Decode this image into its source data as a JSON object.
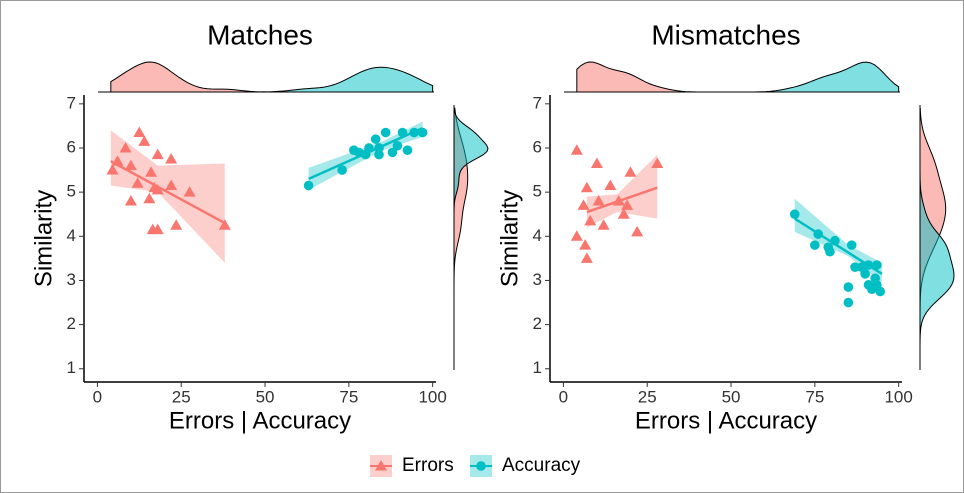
{
  "chart_data": [
    {
      "type": "scatter",
      "title": "Matches",
      "x_label": "Errors | Accuracy",
      "y_label": "Similarity",
      "xlim": [
        -4,
        101
      ],
      "ylim": [
        0.7,
        7.2
      ],
      "xticks": [
        0,
        25,
        50,
        75,
        100
      ],
      "yticks": [
        1,
        2,
        3,
        4,
        5,
        6,
        7
      ],
      "grid": false,
      "series": [
        {
          "name": "Errors",
          "color": "#f8766d",
          "marker": "triangle",
          "x": [
            4.5,
            6,
            8.4,
            10,
            12.5,
            14,
            12,
            10,
            16,
            18,
            17,
            18,
            22,
            22,
            15.5,
            16.5,
            18,
            23.5,
            27.5,
            38
          ],
          "values": [
            5.5,
            5.7,
            6.0,
            5.6,
            6.35,
            6.15,
            5.2,
            4.8,
            5.45,
            5.85,
            5.1,
            5.05,
            5.75,
            5.15,
            4.85,
            4.15,
            4.15,
            4.25,
            5.0,
            4.25
          ],
          "fit": {
            "x": [
              4,
              38
            ],
            "values": [
              5.7,
              4.3
            ]
          },
          "band": {
            "x": [
              4,
              18,
              38
            ],
            "lower": [
              5.15,
              5.0,
              3.4
            ],
            "upper": [
              6.4,
              5.6,
              5.65
            ]
          }
        },
        {
          "name": "Accuracy",
          "color": "#00bfc4",
          "marker": "circle",
          "x": [
            63,
            73,
            76.5,
            78,
            80,
            81,
            83,
            84,
            84,
            86,
            88,
            89.5,
            91,
            92.5,
            94.5,
            97
          ],
          "values": [
            5.15,
            5.5,
            5.95,
            5.9,
            5.85,
            6.0,
            6.2,
            5.85,
            6.0,
            6.35,
            5.9,
            6.05,
            6.35,
            5.95,
            6.35,
            6.35
          ],
          "fit": {
            "x": [
              63,
              97
            ],
            "values": [
              5.3,
              6.45
            ]
          },
          "band": {
            "x": [
              63,
              85,
              97
            ],
            "lower": [
              5.05,
              5.95,
              6.25
            ],
            "upper": [
              5.55,
              6.15,
              6.6
            ]
          }
        }
      ]
    },
    {
      "type": "scatter",
      "title": "Mismatches",
      "x_label": "Errors | Accuracy",
      "y_label": "Similarity",
      "xlim": [
        -4,
        101
      ],
      "ylim": [
        0.7,
        7.2
      ],
      "xticks": [
        0,
        25,
        50,
        75,
        100
      ],
      "yticks": [
        1,
        2,
        3,
        4,
        5,
        6,
        7
      ],
      "grid": false,
      "series": [
        {
          "name": "Errors",
          "color": "#f8766d",
          "marker": "triangle",
          "x": [
            4,
            10,
            28,
            7,
            14,
            20,
            6,
            10.5,
            16.5,
            19,
            4,
            6.5,
            7,
            12,
            18,
            22,
            8
          ],
          "values": [
            5.95,
            5.65,
            5.65,
            5.1,
            5.15,
            5.45,
            4.7,
            4.8,
            4.8,
            4.7,
            4.0,
            3.8,
            3.5,
            4.25,
            4.5,
            4.1,
            4.35
          ],
          "fit": {
            "x": [
              7,
              28
            ],
            "values": [
              4.55,
              5.1
            ]
          },
          "band": {
            "x": [
              7,
              16,
              28
            ],
            "lower": [
              4.2,
              4.55,
              4.4
            ],
            "upper": [
              4.9,
              4.95,
              5.85
            ]
          }
        },
        {
          "name": "Accuracy",
          "color": "#00bfc4",
          "marker": "circle",
          "x": [
            69,
            76,
            75,
            79,
            79.5,
            81,
            86,
            87,
            85,
            85,
            89,
            90,
            91,
            92,
            93,
            93.5,
            94.5,
            91,
            93.5
          ],
          "values": [
            4.5,
            4.05,
            3.8,
            3.75,
            3.65,
            3.9,
            3.8,
            3.3,
            2.85,
            2.5,
            3.3,
            3.15,
            3.35,
            2.8,
            3.05,
            3.35,
            2.75,
            2.9,
            2.9
          ],
          "fit": {
            "x": [
              69,
              95
            ],
            "values": [
              4.4,
              3.15
            ]
          },
          "band": {
            "x": [
              69,
              85,
              95
            ],
            "lower": [
              4.1,
              3.55,
              2.95
            ],
            "upper": [
              4.85,
              3.8,
              3.4
            ]
          }
        }
      ]
    }
  ]
}
